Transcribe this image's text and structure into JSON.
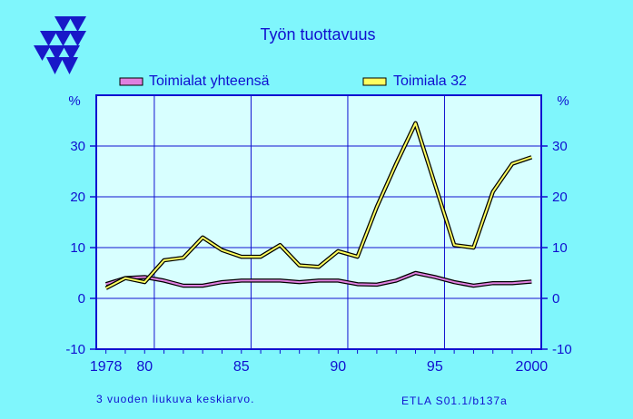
{
  "chart_data": {
    "type": "line",
    "title": "Työn  tuottavuus",
    "unit_left": "%",
    "unit_right": "%",
    "xlim": [
      1977.5,
      2000.5
    ],
    "ylim": [
      -10,
      40
    ],
    "yticks": [
      -10,
      0,
      10,
      20,
      30
    ],
    "ytick_labels": [
      "-10",
      "0",
      "10",
      "20",
      "30"
    ],
    "xtick_labels": [
      {
        "year": 1978,
        "label": "1978"
      },
      {
        "year": 1980,
        "label": "80"
      },
      {
        "year": 1985,
        "label": "85"
      },
      {
        "year": 1990,
        "label": "90"
      },
      {
        "year": 1995,
        "label": "95"
      },
      {
        "year": 2000,
        "label": "2000"
      }
    ],
    "x_gridlines": [
      1980.5,
      1985.5,
      1990.5,
      1995.5
    ],
    "y_gridlines": [
      0,
      10,
      20,
      30
    ],
    "grid": true,
    "legend_position": "top",
    "x": [
      1978,
      1979,
      1980,
      1981,
      1982,
      1983,
      1984,
      1985,
      1986,
      1987,
      1988,
      1989,
      1990,
      1991,
      1992,
      1993,
      1994,
      1995,
      1996,
      1997,
      1998,
      1999,
      2000
    ],
    "series": [
      {
        "name": "Toimialat yhteensä",
        "color": "#e080e0",
        "values": [
          2.8,
          4.0,
          4.2,
          3.5,
          2.5,
          2.5,
          3.2,
          3.5,
          3.5,
          3.5,
          3.2,
          3.5,
          3.5,
          2.8,
          2.7,
          3.5,
          5.0,
          4.2,
          3.2,
          2.5,
          3.0,
          3.0,
          3.3
        ]
      },
      {
        "name": "Toimiala 32",
        "color": "#ffff60",
        "values": [
          2.0,
          4.0,
          3.2,
          7.5,
          8.0,
          12.0,
          9.5,
          8.2,
          8.2,
          10.5,
          6.5,
          6.2,
          9.3,
          8.2,
          18.0,
          26.5,
          34.5,
          22.5,
          10.5,
          10.0,
          21.0,
          26.5,
          27.8
        ]
      }
    ]
  },
  "footnote": "3 vuoden liukuva keskiarvo.",
  "source": "ETLA S01.1/b137a",
  "logo": "etla-triangle-logo"
}
